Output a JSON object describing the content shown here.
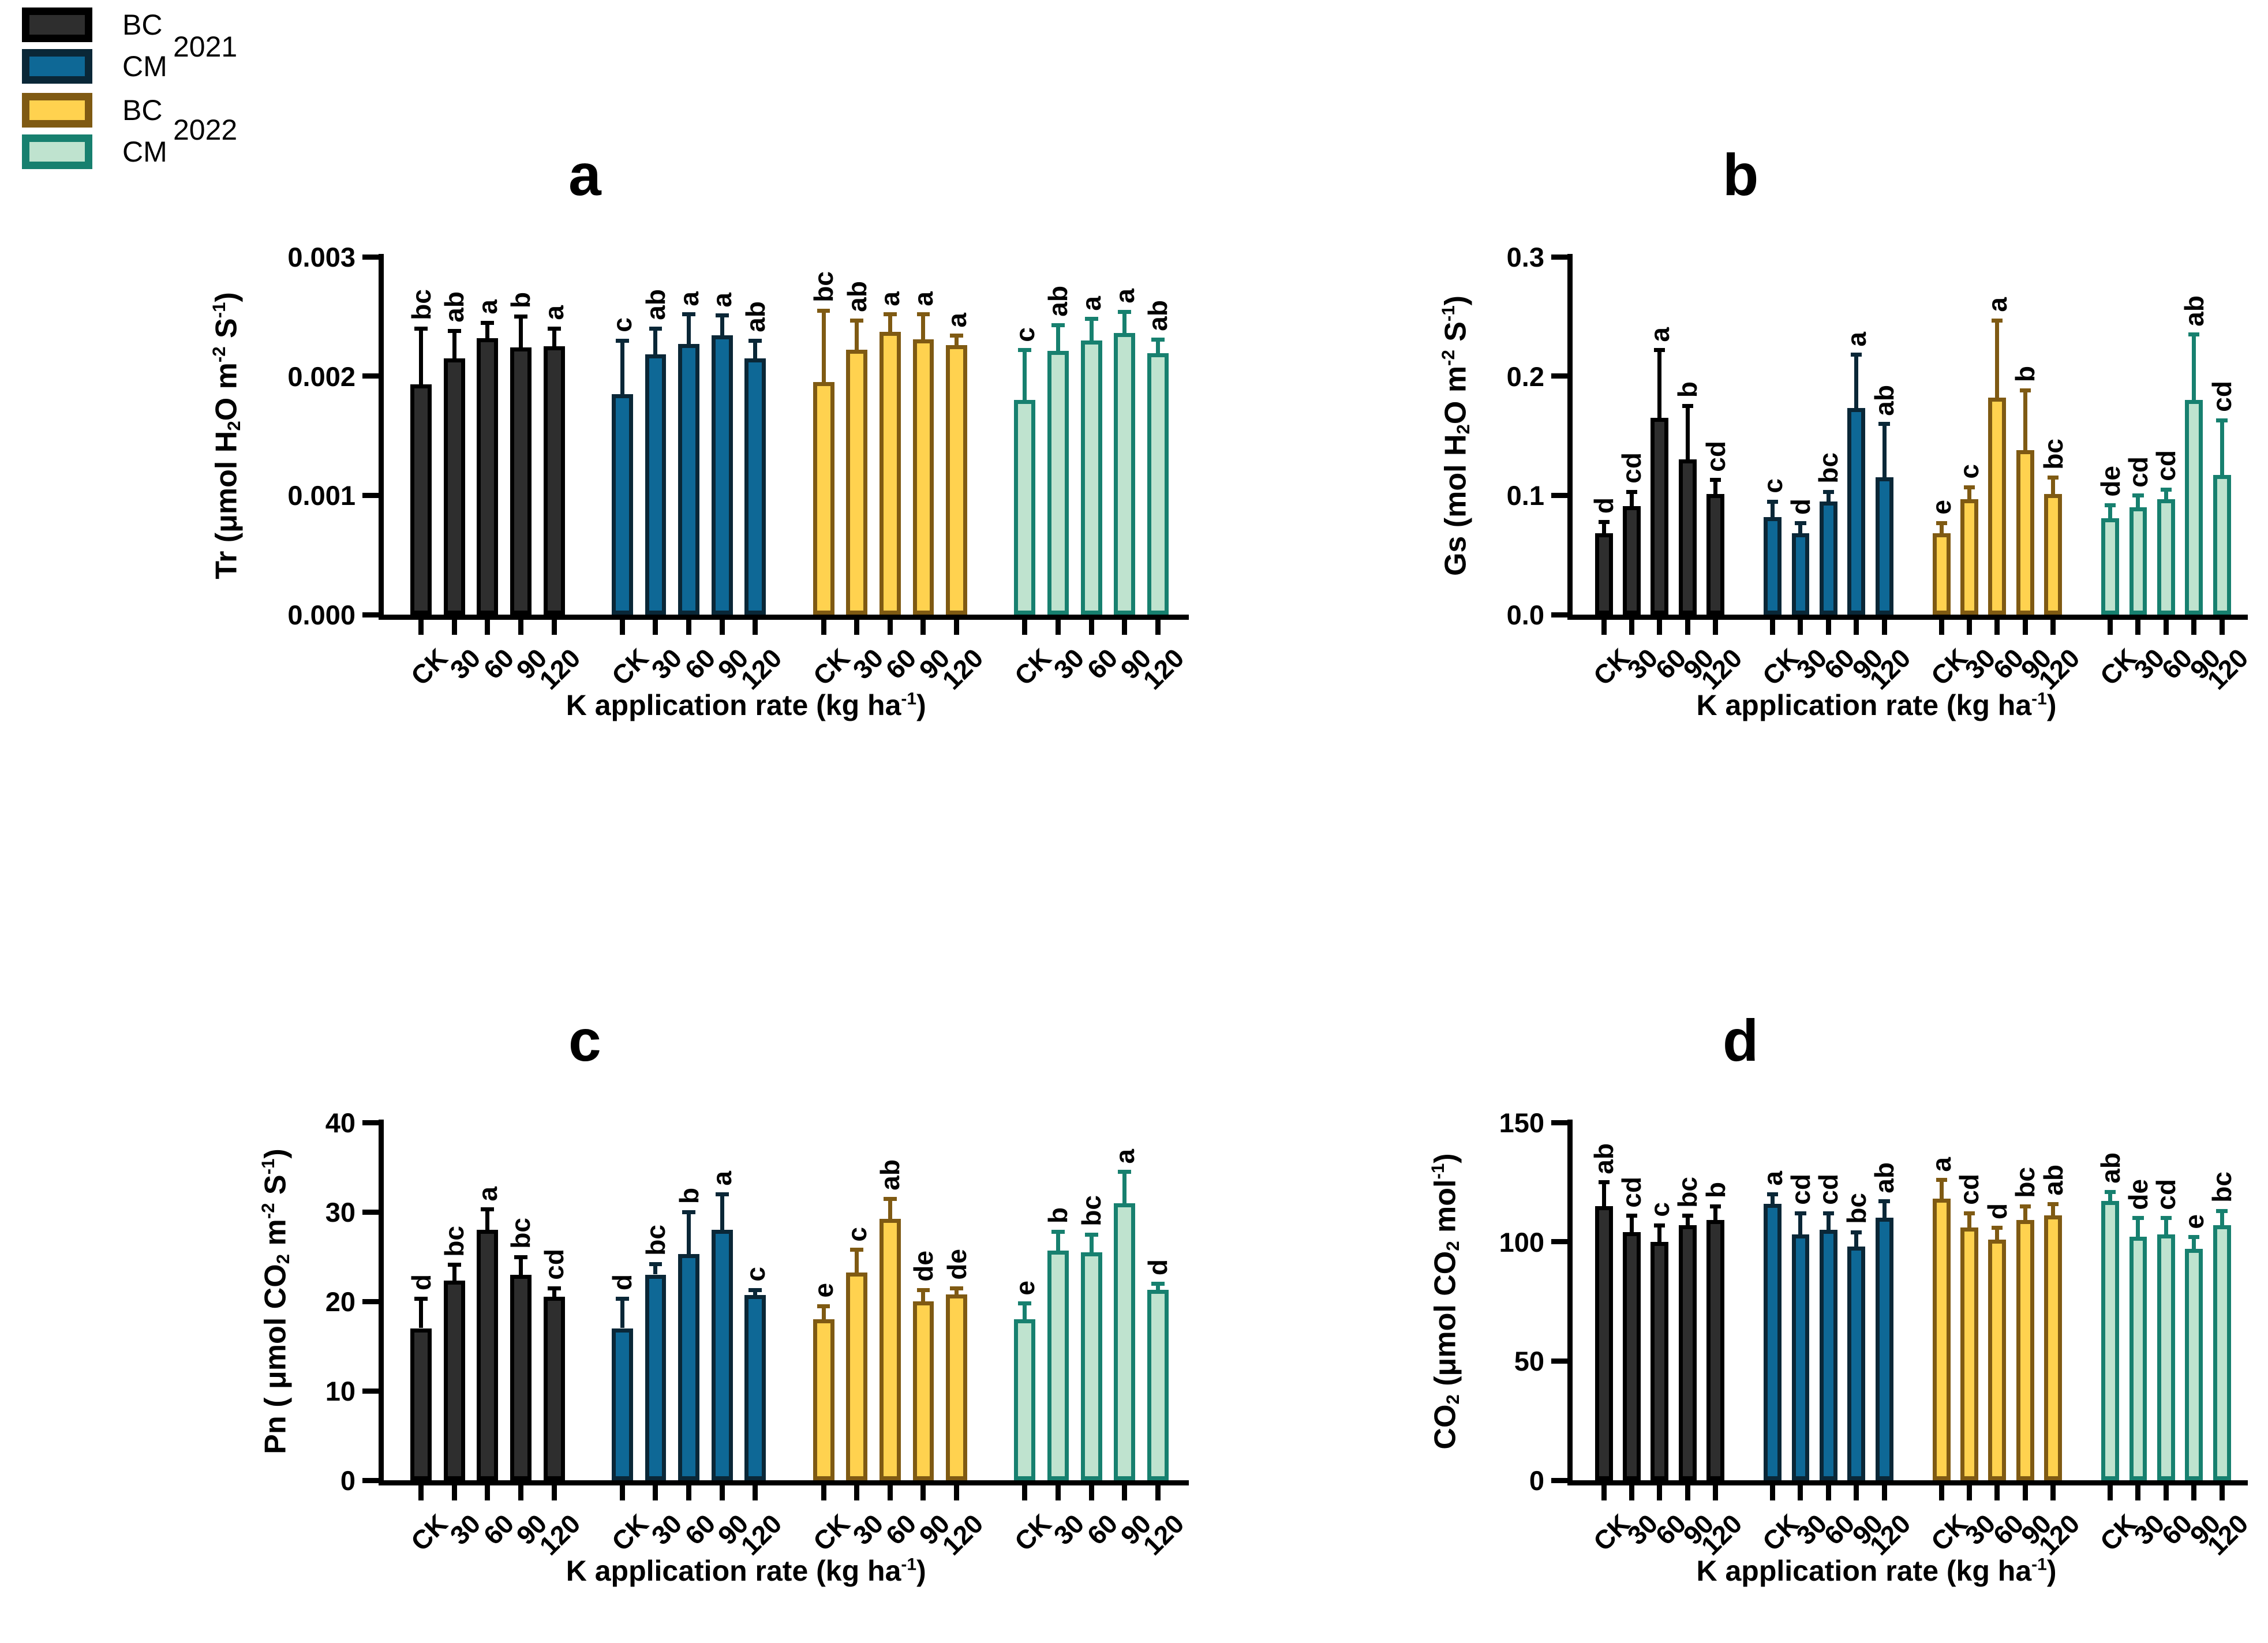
{
  "legend": {
    "groups": [
      {
        "year": "2021",
        "items": [
          {
            "label": "BC",
            "fill": "#2e2e2e",
            "border": "#000000"
          },
          {
            "label": "CM",
            "fill": "#0e6896",
            "border": "#0a2737"
          }
        ]
      },
      {
        "year": "2022",
        "items": [
          {
            "label": "BC",
            "fill": "#ffd24f",
            "border": "#7f5a13"
          },
          {
            "label": "CM",
            "fill": "#bfe3cf",
            "border": "#17806f"
          }
        ]
      }
    ]
  },
  "xlabel": {
    "plain": "K application rate (kg ha-1)",
    "parts": [
      {
        "t": "K application rate (kg ha"
      },
      {
        "sup": "-1"
      },
      {
        "t": ")"
      }
    ]
  },
  "chart_data": [
    {
      "type": "bar",
      "panel_letter": "a",
      "ylabel": {
        "plain": "Tr (umol H2O m-2 S-1)",
        "parts": [
          {
            "t": "Tr (μmol H"
          },
          {
            "sub": "2"
          },
          {
            "t": "O m"
          },
          {
            "sup": "-2"
          },
          {
            "t": " S"
          },
          {
            "sup": "-1"
          },
          {
            "t": ")"
          }
        ]
      },
      "ylim": [
        0,
        0.003
      ],
      "yticks": [
        {
          "v": 0,
          "label": "0.000"
        },
        {
          "v": 0.001,
          "label": "0.001"
        },
        {
          "v": 0.002,
          "label": "0.002"
        },
        {
          "v": 0.003,
          "label": "0.003"
        }
      ],
      "categories": [
        "CK",
        "30",
        "60",
        "90",
        "120"
      ],
      "legend_position": "none",
      "grid": false,
      "series": [
        {
          "name": "BC 2021",
          "values": [
            0.00193,
            0.00215,
            0.00232,
            0.00224,
            0.00225
          ],
          "errors": [
            0.00047,
            0.00023,
            0.00013,
            0.00026,
            0.00015
          ],
          "letters": [
            "bc",
            "ab",
            "a",
            "b",
            "a"
          ]
        },
        {
          "name": "CM 2021",
          "values": [
            0.00185,
            0.00218,
            0.00227,
            0.00234,
            0.00215
          ],
          "errors": [
            0.00045,
            0.00022,
            0.00025,
            0.00017,
            0.00015
          ],
          "letters": [
            "c",
            "ab",
            "a",
            "a",
            "ab"
          ]
        },
        {
          "name": "BC 2022",
          "values": [
            0.00195,
            0.00222,
            0.00237,
            0.00231,
            0.00226
          ],
          "errors": [
            0.0006,
            0.00025,
            0.00015,
            0.00021,
            8e-05
          ],
          "letters": [
            "bc",
            "ab",
            "a",
            "a",
            "a"
          ]
        },
        {
          "name": "CM 2022",
          "values": [
            0.0018,
            0.00221,
            0.0023,
            0.00236,
            0.00219
          ],
          "errors": [
            0.00042,
            0.00022,
            0.00018,
            0.00018,
            0.00012
          ],
          "letters": [
            "c",
            "ab",
            "a",
            "a",
            "ab"
          ]
        }
      ]
    },
    {
      "type": "bar",
      "panel_letter": "b",
      "ylabel": {
        "plain": "Gs (mol H2O m-2 S-1)",
        "parts": [
          {
            "t": "Gs (mol H"
          },
          {
            "sub": "2"
          },
          {
            "t": "O m"
          },
          {
            "sup": "-2"
          },
          {
            "t": " S"
          },
          {
            "sup": "-1"
          },
          {
            "t": ")"
          }
        ]
      },
      "ylim": [
        0,
        0.3
      ],
      "yticks": [
        {
          "v": 0,
          "label": "0.0"
        },
        {
          "v": 0.1,
          "label": "0.1"
        },
        {
          "v": 0.2,
          "label": "0.2"
        },
        {
          "v": 0.3,
          "label": "0.3"
        }
      ],
      "categories": [
        "CK",
        "30",
        "60",
        "90",
        "120"
      ],
      "legend_position": "none",
      "grid": false,
      "series": [
        {
          "name": "BC 2021",
          "values": [
            0.068,
            0.091,
            0.165,
            0.13,
            0.101
          ],
          "errors": [
            0.01,
            0.012,
            0.057,
            0.045,
            0.012
          ],
          "letters": [
            "d",
            "cd",
            "a",
            "b",
            "cd"
          ]
        },
        {
          "name": "CM 2021",
          "values": [
            0.082,
            0.068,
            0.095,
            0.173,
            0.115
          ],
          "errors": [
            0.013,
            0.009,
            0.008,
            0.045,
            0.045
          ],
          "letters": [
            "c",
            "d",
            "bc",
            "a",
            "ab"
          ]
        },
        {
          "name": "BC 2022",
          "values": [
            0.068,
            0.097,
            0.182,
            0.138,
            0.101
          ],
          "errors": [
            0.009,
            0.01,
            0.065,
            0.05,
            0.014
          ],
          "letters": [
            "e",
            "c",
            "a",
            "b",
            "bc"
          ]
        },
        {
          "name": "CM 2022",
          "values": [
            0.081,
            0.09,
            0.097,
            0.18,
            0.117
          ],
          "errors": [
            0.011,
            0.01,
            0.008,
            0.055,
            0.046
          ],
          "letters": [
            "de",
            "cd",
            "cd",
            "ab",
            "cd"
          ]
        }
      ]
    },
    {
      "type": "bar",
      "panel_letter": "c",
      "ylabel": {
        "plain": "Pn ( umol CO2 m-2 S-1)",
        "parts": [
          {
            "t": "Pn  ( μmol CO"
          },
          {
            "sub": "2"
          },
          {
            "t": " m"
          },
          {
            "sup": "-2"
          },
          {
            "t": " S"
          },
          {
            "sup": "-1"
          },
          {
            "t": ")"
          }
        ]
      },
      "ylim": [
        0,
        40
      ],
      "yticks": [
        {
          "v": 0,
          "label": "0"
        },
        {
          "v": 10,
          "label": "10"
        },
        {
          "v": 20,
          "label": "20"
        },
        {
          "v": 30,
          "label": "30"
        },
        {
          "v": 40,
          "label": "40"
        }
      ],
      "categories": [
        "CK",
        "30",
        "60",
        "90",
        "120"
      ],
      "legend_position": "none",
      "grid": false,
      "series": [
        {
          "name": "BC 2021",
          "values": [
            17.0,
            22.3,
            28.0,
            23.0,
            20.5
          ],
          "errors": [
            3.3,
            1.8,
            2.3,
            2.0,
            1.0
          ],
          "letters": [
            "d",
            "bc",
            "a",
            "bc",
            "cd"
          ]
        },
        {
          "name": "CM 2021",
          "values": [
            17.0,
            23.0,
            25.3,
            28.0,
            20.7
          ],
          "errors": [
            3.3,
            1.2,
            4.7,
            4.0,
            0.6
          ],
          "letters": [
            "d",
            "bc",
            "b",
            "a",
            "c"
          ]
        },
        {
          "name": "BC 2022",
          "values": [
            18.0,
            23.2,
            29.2,
            20.0,
            20.8
          ],
          "errors": [
            1.5,
            2.6,
            2.3,
            1.3,
            0.7
          ],
          "letters": [
            "e",
            "c",
            "ab",
            "de",
            "de"
          ]
        },
        {
          "name": "CM 2022",
          "values": [
            18.0,
            25.7,
            25.5,
            31.0,
            21.3
          ],
          "errors": [
            1.8,
            2.1,
            2.0,
            3.5,
            0.7
          ],
          "letters": [
            "e",
            "b",
            "bc",
            "a",
            "d"
          ]
        }
      ]
    },
    {
      "type": "bar",
      "panel_letter": "d",
      "ylabel": {
        "plain": "CO2 (umol CO2 mol-1)",
        "parts": [
          {
            "t": "CO"
          },
          {
            "sub": "2"
          },
          {
            "t": " (μmol CO"
          },
          {
            "sub": "2"
          },
          {
            "t": " mol"
          },
          {
            "sup": "-1"
          },
          {
            "t": ")"
          }
        ]
      },
      "ylim": [
        0,
        150
      ],
      "yticks": [
        {
          "v": 0,
          "label": "0"
        },
        {
          "v": 50,
          "label": "50"
        },
        {
          "v": 100,
          "label": "100"
        },
        {
          "v": 150,
          "label": "150"
        }
      ],
      "categories": [
        "CK",
        "30",
        "60",
        "90",
        "120"
      ],
      "legend_position": "none",
      "grid": false,
      "series": [
        {
          "name": "BC 2021",
          "values": [
            115,
            104,
            100,
            107,
            109
          ],
          "errors": [
            10,
            7,
            7,
            4,
            6
          ],
          "letters": [
            "ab",
            "cd",
            "c",
            "bc",
            "b"
          ]
        },
        {
          "name": "CM 2021",
          "values": [
            116,
            103,
            105,
            98,
            110
          ],
          "errors": [
            4,
            9,
            7,
            6,
            7
          ],
          "letters": [
            "a",
            "cd",
            "cd",
            "bc",
            "ab"
          ]
        },
        {
          "name": "BC 2022",
          "values": [
            118,
            106,
            101,
            109,
            111
          ],
          "errors": [
            8,
            6,
            5,
            6,
            5
          ],
          "letters": [
            "a",
            "cd",
            "d",
            "bc",
            "ab"
          ]
        },
        {
          "name": "CM 2022",
          "values": [
            117,
            102,
            103,
            97,
            107
          ],
          "errors": [
            4,
            8,
            7,
            5,
            6
          ],
          "letters": [
            "ab",
            "de",
            "cd",
            "e",
            "bc"
          ]
        }
      ]
    }
  ]
}
